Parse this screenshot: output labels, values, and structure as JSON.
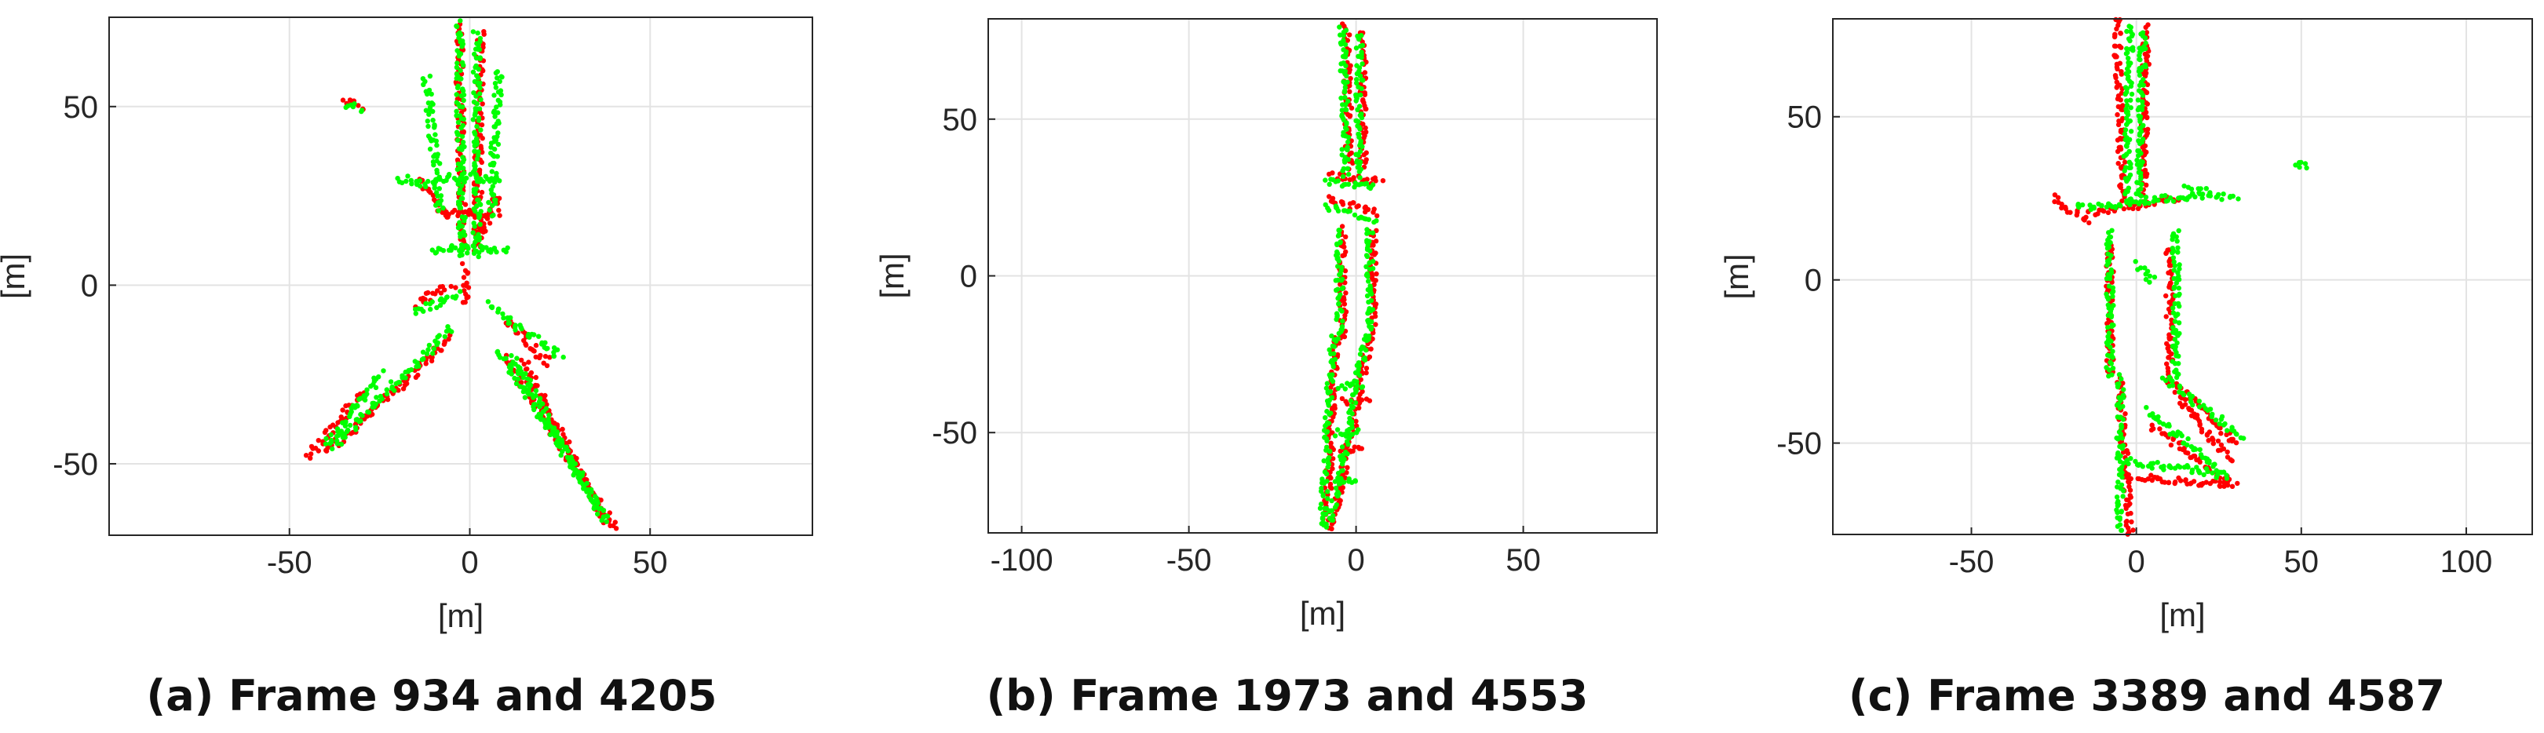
{
  "colors": {
    "source_frame": "#ff0000",
    "target_frame": "#00ff00"
  },
  "chart_data": [
    {
      "type": "scatter",
      "caption": "(a) Frame 934 and 4205",
      "xlabel": "[m]",
      "ylabel": "[m]",
      "xlim": [
        -100,
        95
      ],
      "ylim": [
        -70,
        75
      ],
      "xticks": [
        -50,
        0,
        50
      ],
      "yticks": [
        -50,
        0,
        50
      ],
      "grid": true,
      "series": [
        {
          "color": "#ff0000",
          "segments": [
            [
              [
                -3,
                72
              ],
              [
                -2,
                10
              ]
            ],
            [
              [
                3,
                70
              ],
              [
                2,
                10
              ]
            ],
            [
              [
                -1,
                5
              ],
              [
                -1,
                -5
              ]
            ],
            [
              [
                -8,
                20
              ],
              [
                8,
                20
              ]
            ],
            [
              [
                -14,
                30
              ],
              [
                -6,
                18
              ]
            ],
            [
              [
                8,
                25
              ],
              [
                2,
                12
              ]
            ],
            [
              [
                -15,
                -5
              ],
              [
                -5,
                0
              ]
            ],
            [
              [
                10,
                -10
              ],
              [
                22,
                -22
              ]
            ],
            [
              [
                -5,
                -15
              ],
              [
                -40,
                -47
              ]
            ],
            [
              [
                -30,
                -30
              ],
              [
                -45,
                -48
              ]
            ],
            [
              [
                10,
                -20
              ],
              [
                40,
                -68
              ]
            ],
            [
              [
                15,
                -22
              ],
              [
                38,
                -67
              ]
            ],
            [
              [
                -35,
                52
              ],
              [
                -30,
                50
              ]
            ]
          ]
        },
        {
          "color": "#00ff00",
          "segments": [
            [
              [
                -3,
                73
              ],
              [
                -2,
                8
              ]
            ],
            [
              [
                2,
                71
              ],
              [
                2,
                8
              ]
            ],
            [
              [
                -12,
                58
              ],
              [
                -8,
                20
              ]
            ],
            [
              [
                8,
                60
              ],
              [
                6,
                20
              ]
            ],
            [
              [
                -10,
                30
              ],
              [
                8,
                30
              ]
            ],
            [
              [
                -10,
                10
              ],
              [
                10,
                10
              ]
            ],
            [
              [
                -15,
                -8
              ],
              [
                -3,
                -2
              ]
            ],
            [
              [
                5,
                -5
              ],
              [
                25,
                -20
              ]
            ],
            [
              [
                -5,
                -12
              ],
              [
                -38,
                -45
              ]
            ],
            [
              [
                -25,
                -25
              ],
              [
                -40,
                -45
              ]
            ],
            [
              [
                8,
                -18
              ],
              [
                38,
                -66
              ]
            ],
            [
              [
                12,
                -20
              ],
              [
                37,
                -65
              ]
            ],
            [
              [
                -34,
                51
              ],
              [
                -30,
                49
              ]
            ],
            [
              [
                -20,
                30
              ],
              [
                -10,
                28
              ]
            ]
          ]
        }
      ]
    },
    {
      "type": "scatter",
      "caption": "(b) Frame 1973 and 4553",
      "xlabel": "[m]",
      "ylabel": "[m]",
      "xlim": [
        -110,
        90
      ],
      "ylim": [
        -82,
        82
      ],
      "xticks": [
        -100,
        -50,
        0,
        50
      ],
      "yticks": [
        -50,
        0,
        50
      ],
      "grid": true,
      "series": [
        {
          "color": "#ff0000",
          "segments": [
            [
              [
                -3,
                80
              ],
              [
                -2,
                35
              ]
            ],
            [
              [
                2,
                78
              ],
              [
                2,
                35
              ]
            ],
            [
              [
                -8,
                32
              ],
              [
                7,
                30
              ]
            ],
            [
              [
                -8,
                25
              ],
              [
                6,
                20
              ]
            ],
            [
              [
                -4,
                15
              ],
              [
                -4,
                -20
              ]
            ],
            [
              [
                5,
                15
              ],
              [
                5,
                -20
              ]
            ],
            [
              [
                -6,
                -20
              ],
              [
                -9,
                -80
              ]
            ],
            [
              [
                4,
                -20
              ],
              [
                -7,
                -80
              ]
            ],
            [
              [
                -4,
                -40
              ],
              [
                3,
                -40
              ]
            ],
            [
              [
                -5,
                -55
              ],
              [
                2,
                -55
              ]
            ]
          ]
        },
        {
          "color": "#00ff00",
          "segments": [
            [
              [
                -4,
                79
              ],
              [
                -3,
                32
              ]
            ],
            [
              [
                1,
                77
              ],
              [
                1,
                32
              ]
            ],
            [
              [
                -9,
                30
              ],
              [
                6,
                28
              ]
            ],
            [
              [
                -9,
                22
              ],
              [
                5,
                18
              ]
            ],
            [
              [
                -5,
                15
              ],
              [
                -5,
                -20
              ]
            ],
            [
              [
                4,
                15
              ],
              [
                4,
                -20
              ]
            ],
            [
              [
                -7,
                -20
              ],
              [
                -10,
                -80
              ]
            ],
            [
              [
                3,
                -20
              ],
              [
                -8,
                -80
              ]
            ],
            [
              [
                -5,
                -35
              ],
              [
                2,
                -35
              ]
            ],
            [
              [
                -6,
                -50
              ],
              [
                1,
                -50
              ]
            ],
            [
              [
                -7,
                -65
              ],
              [
                0,
                -65
              ]
            ]
          ]
        }
      ]
    },
    {
      "type": "scatter",
      "caption": "(c) Frame 3389 and 4587",
      "xlabel": "[m]",
      "ylabel": "[m]",
      "xlim": [
        -92,
        120
      ],
      "ylim": [
        -78,
        80
      ],
      "xticks": [
        -50,
        0,
        50,
        100
      ],
      "yticks": [
        -50,
        0,
        50
      ],
      "grid": true,
      "series": [
        {
          "color": "#ff0000",
          "segments": [
            [
              [
                -6,
                80
              ],
              [
                -4,
                25
              ]
            ],
            [
              [
                3,
                78
              ],
              [
                2,
                25
              ]
            ],
            [
              [
                -25,
                25
              ],
              [
                -15,
                18
              ]
            ],
            [
              [
                -15,
                20
              ],
              [
                12,
                25
              ]
            ],
            [
              [
                -8,
                10
              ],
              [
                -8,
                -30
              ]
            ],
            [
              [
                10,
                10
              ],
              [
                10,
                -30
              ]
            ],
            [
              [
                -5,
                -30
              ],
              [
                -2,
                -78
              ]
            ],
            [
              [
                10,
                -30
              ],
              [
                30,
                -50
              ]
            ],
            [
              [
                5,
                -45
              ],
              [
                28,
                -62
              ]
            ],
            [
              [
                -5,
                -60
              ],
              [
                30,
                -63
              ]
            ],
            [
              [
                12,
                -35
              ],
              [
                28,
                -55
              ]
            ]
          ]
        },
        {
          "color": "#00ff00",
          "segments": [
            [
              [
                -2,
                78
              ],
              [
                -3,
                25
              ]
            ],
            [
              [
                2,
                76
              ],
              [
                1,
                25
              ]
            ],
            [
              [
                -18,
                22
              ],
              [
                20,
                26
              ]
            ],
            [
              [
                15,
                28
              ],
              [
                30,
                25
              ]
            ],
            [
              [
                -8,
                15
              ],
              [
                -8,
                -30
              ]
            ],
            [
              [
                12,
                15
              ],
              [
                12,
                -30
              ]
            ],
            [
              [
                -5,
                -30
              ],
              [
                -5,
                -78
              ]
            ],
            [
              [
                8,
                -30
              ],
              [
                32,
                -48
              ]
            ],
            [
              [
                3,
                -40
              ],
              [
                25,
                -58
              ]
            ],
            [
              [
                -5,
                -55
              ],
              [
                28,
                -60
              ]
            ],
            [
              [
                48,
                35
              ],
              [
                52,
                35
              ]
            ],
            [
              [
                0,
                5
              ],
              [
                5,
                0
              ]
            ]
          ]
        }
      ]
    }
  ]
}
